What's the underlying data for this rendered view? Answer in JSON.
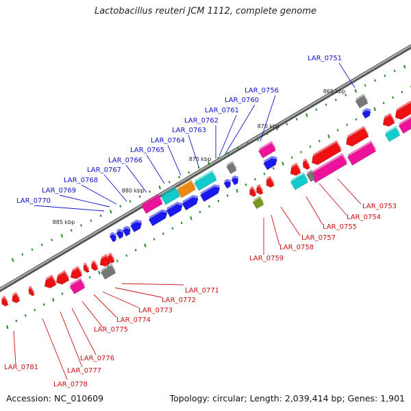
{
  "title": "Lactobacillus reuteri JCM 1112, complete genome",
  "accession": "Accession: NC_010609",
  "topology": "Topology: circular; Length: 2,039,414 bp; Genes: 1,901",
  "scale_labels": [
    {
      "name": "tick-865",
      "text": "865 kbp"
    },
    {
      "name": "tick-870",
      "text": "870 kbp"
    },
    {
      "name": "tick-875",
      "text": "875 kbp"
    },
    {
      "name": "tick-880",
      "text": "880 kbp"
    },
    {
      "name": "tick-885",
      "text": "885 kbp"
    }
  ],
  "colors": {
    "forward_label": "#1010cc",
    "reverse_label": "#cc1010",
    "backbone": "#777777",
    "blue": "#1a1af0",
    "red": "#ee1111",
    "pink": "#ee1199",
    "cyan": "#11cccc",
    "gray": "#777777",
    "orange": "#ee8811",
    "olive": "#779922",
    "tick": "#228822"
  },
  "forward_genes": [
    {
      "name": "LAR_0751",
      "text": "LAR_0751"
    },
    {
      "name": "LAR_0756",
      "text": "LAR_0756"
    },
    {
      "name": "LAR_0760",
      "text": "LAR_0760"
    },
    {
      "name": "LAR_0761",
      "text": "LAR_0761"
    },
    {
      "name": "LAR_0762",
      "text": "LAR_0762"
    },
    {
      "name": "LAR_0763",
      "text": "LAR_0763"
    },
    {
      "name": "LAR_0764",
      "text": "LAR_0764"
    },
    {
      "name": "LAR_0765",
      "text": "LAR_0765"
    },
    {
      "name": "LAR_0766",
      "text": "LAR_0766"
    },
    {
      "name": "LAR_0767",
      "text": "LAR_0767"
    },
    {
      "name": "LAR_0768",
      "text": "LAR_0768"
    },
    {
      "name": "LAR_0769",
      "text": "LAR_0769"
    },
    {
      "name": "LAR_0770",
      "text": "LAR_0770"
    }
  ],
  "reverse_genes": [
    {
      "name": "LAR_0753",
      "text": "LAR_0753"
    },
    {
      "name": "LAR_0754",
      "text": "LAR_0754"
    },
    {
      "name": "LAR_0755",
      "text": "LAR_0755"
    },
    {
      "name": "LAR_0757",
      "text": "LAR_0757"
    },
    {
      "name": "LAR_0758",
      "text": "LAR_0758"
    },
    {
      "name": "LAR_0759",
      "text": "LAR_0759"
    },
    {
      "name": "LAR_0771",
      "text": "LAR_0771"
    },
    {
      "name": "LAR_0772",
      "text": "LAR_0772"
    },
    {
      "name": "LAR_0773",
      "text": "LAR_0773"
    },
    {
      "name": "LAR_0774",
      "text": "LAR_0774"
    },
    {
      "name": "LAR_0775",
      "text": "LAR_0775"
    },
    {
      "name": "LAR_0776",
      "text": "LAR_0776"
    },
    {
      "name": "LAR_0777",
      "text": "LAR_0777"
    },
    {
      "name": "LAR_0778",
      "text": "LAR_0778"
    },
    {
      "name": "LAR_0781",
      "text": "LAR_0781"
    }
  ]
}
